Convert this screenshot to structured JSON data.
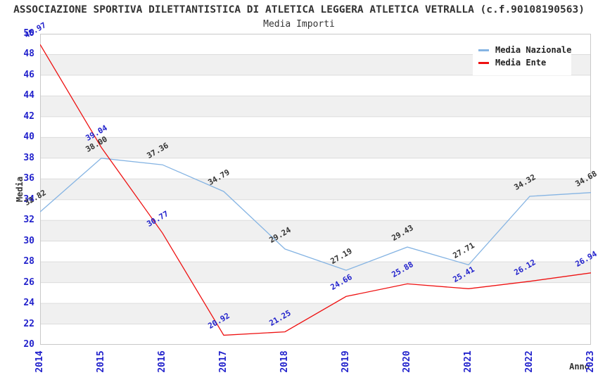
{
  "chart": {
    "title": "ASSOCIAZIONE SPORTIVA DILETTANTISTICA DI ATLETICA LEGGERA ATLETICA VETRALLA (c.f.90108190563)",
    "subtitle": "Media Importi",
    "y_axis_title": "Media",
    "x_axis_title": "Anno"
  },
  "chart_data": {
    "type": "line",
    "title": "Media Importi",
    "xlabel": "Anno",
    "ylabel": "Media",
    "categories": [
      "2014",
      "2015",
      "2016",
      "2017",
      "2018",
      "2019",
      "2020",
      "2021",
      "2022",
      "2023"
    ],
    "series": [
      {
        "name": "Media Nazionale",
        "color": "#85B4E3",
        "label_color": "#333333",
        "values": [
          32.82,
          38.0,
          37.36,
          34.79,
          29.24,
          27.19,
          29.43,
          27.71,
          34.32,
          34.68
        ]
      },
      {
        "name": "Media Ente",
        "color": "#EE1111",
        "label_color": "#2222CC",
        "values": [
          48.97,
          39.04,
          30.77,
          20.92,
          21.25,
          24.66,
          25.88,
          25.41,
          26.12,
          26.94
        ]
      }
    ],
    "ylim": [
      20,
      50
    ],
    "ytick_step": 2,
    "grid": true,
    "legend_position": "top-right",
    "tick_color": "#2222CC",
    "grid_color": "#dcdcdc",
    "border_color": "#c8c8c8",
    "band_colors": [
      "#ffffff",
      "#f0f0f0"
    ]
  }
}
